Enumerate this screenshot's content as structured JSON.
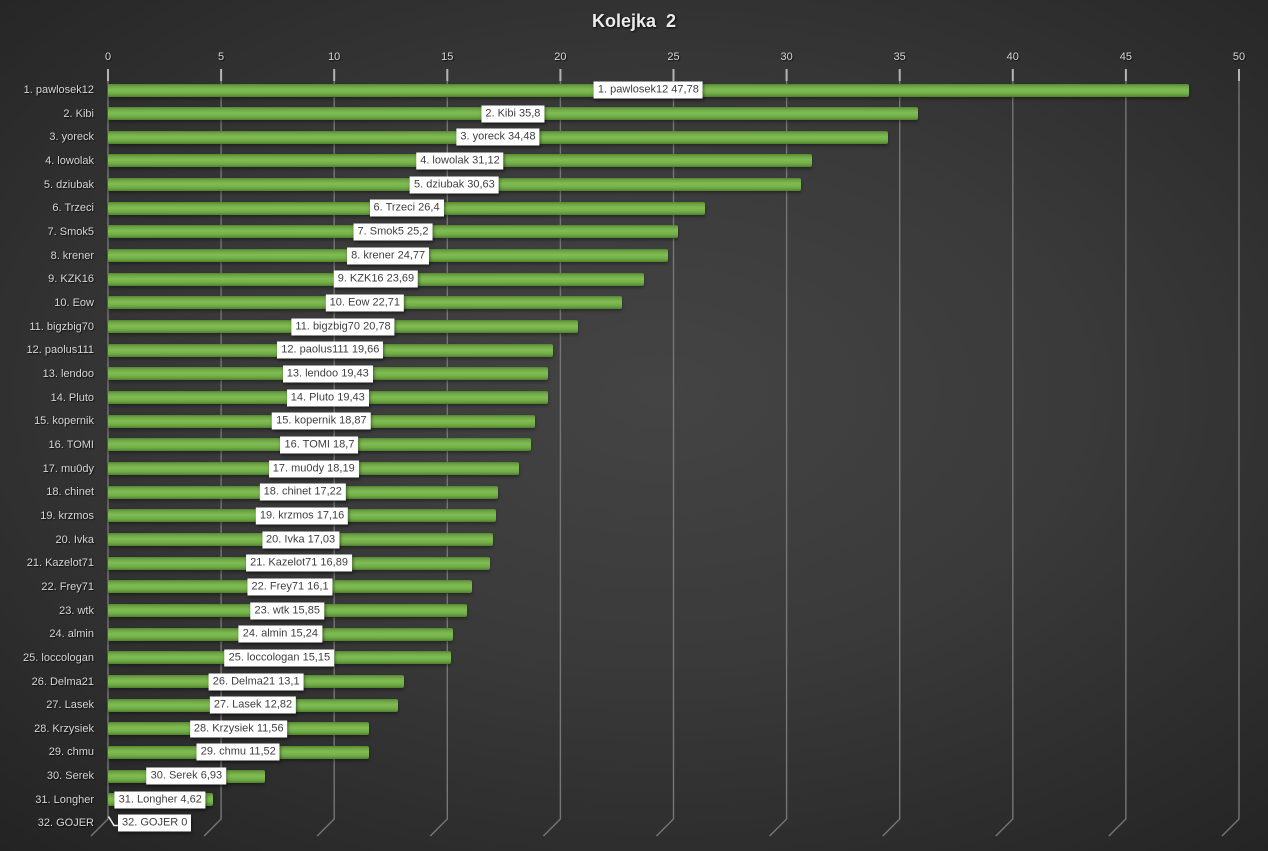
{
  "title": "Kolejka  2",
  "chart_data": {
    "type": "bar",
    "orientation": "horizontal",
    "title": "Kolejka  2",
    "xlim": [
      0,
      50
    ],
    "grid": true,
    "legend": "none",
    "x_axis": {
      "ticks": [
        "0",
        "5",
        "10",
        "15",
        "20",
        "25",
        "30",
        "35",
        "40",
        "45",
        "50"
      ]
    },
    "players": [
      {
        "label": "1. pawlosek12",
        "value": 47.78,
        "data_label": "1. pawlosek12 47,78"
      },
      {
        "label": "2. Kibi",
        "value": 35.8,
        "data_label": "2. Kibi 35,8"
      },
      {
        "label": "3. yoreck",
        "value": 34.48,
        "data_label": "3. yoreck 34,48"
      },
      {
        "label": "4. lowolak",
        "value": 31.12,
        "data_label": "4. lowolak 31,12"
      },
      {
        "label": "5. dziubak",
        "value": 30.63,
        "data_label": "5. dziubak 30,63"
      },
      {
        "label": "6. Trzeci",
        "value": 26.4,
        "data_label": "6. Trzeci 26,4"
      },
      {
        "label": "7. Smok5",
        "value": 25.2,
        "data_label": "7. Smok5 25,2"
      },
      {
        "label": "8. krener",
        "value": 24.77,
        "data_label": "8. krener 24,77"
      },
      {
        "label": "9. KZK16",
        "value": 23.69,
        "data_label": "9. KZK16 23,69"
      },
      {
        "label": "10. Eow",
        "value": 22.71,
        "data_label": "10. Eow 22,71"
      },
      {
        "label": "11. bigzbig70",
        "value": 20.78,
        "data_label": "11. bigzbig70 20,78"
      },
      {
        "label": "12. paolus111",
        "value": 19.66,
        "data_label": "12. paolus111 19,66"
      },
      {
        "label": "13. lendoo",
        "value": 19.43,
        "data_label": "13. lendoo 19,43"
      },
      {
        "label": "14. Pluto",
        "value": 19.43,
        "data_label": "14. Pluto 19,43"
      },
      {
        "label": "15. kopernik",
        "value": 18.87,
        "data_label": "15. kopernik 18,87"
      },
      {
        "label": "16. TOMI",
        "value": 18.7,
        "data_label": "16. TOMI 18,7"
      },
      {
        "label": "17. mu0dy",
        "value": 18.19,
        "data_label": "17. mu0dy 18,19"
      },
      {
        "label": "18. chinet",
        "value": 17.22,
        "data_label": "18. chinet 17,22"
      },
      {
        "label": "19. krzmos",
        "value": 17.16,
        "data_label": "19. krzmos 17,16"
      },
      {
        "label": "20. Ivka",
        "value": 17.03,
        "data_label": "20. Ivka 17,03"
      },
      {
        "label": "21. Kazelot71",
        "value": 16.89,
        "data_label": "21. Kazelot71 16,89"
      },
      {
        "label": "22. Frey71",
        "value": 16.1,
        "data_label": "22. Frey71 16,1"
      },
      {
        "label": "23. wtk",
        "value": 15.85,
        "data_label": "23. wtk 15,85"
      },
      {
        "label": "24. almin",
        "value": 15.24,
        "data_label": "24. almin 15,24"
      },
      {
        "label": "25. loccologan",
        "value": 15.15,
        "data_label": "25. loccologan 15,15"
      },
      {
        "label": "26. Delma21",
        "value": 13.1,
        "data_label": "26. Delma21 13,1"
      },
      {
        "label": "27. Lasek",
        "value": 12.82,
        "data_label": "27. Lasek 12,82"
      },
      {
        "label": "28. Krzysiek",
        "value": 11.56,
        "data_label": "28. Krzysiek 11,56"
      },
      {
        "label": "29. chmu",
        "value": 11.52,
        "data_label": "29. chmu 11,52"
      },
      {
        "label": "30. Serek",
        "value": 6.93,
        "data_label": "30. Serek 6,93"
      },
      {
        "label": "31. Longher",
        "value": 4.62,
        "data_label": "31. Longher 4,62"
      },
      {
        "label": "32. GOJER",
        "value": 0,
        "data_label": "32. GOJER 0"
      }
    ],
    "colors": {
      "bar": "#74b049",
      "bar_edge_dark": "#4d7a2b",
      "background_center": "#444444",
      "background_edge": "#222222",
      "gridline": "#767676",
      "tick_mark": "#b5b5b5",
      "axis_text": "#d6d6d6",
      "data_label_bg": "#ffffff",
      "data_label_text": "#3f3f3f",
      "title_text": "#ececec"
    }
  }
}
